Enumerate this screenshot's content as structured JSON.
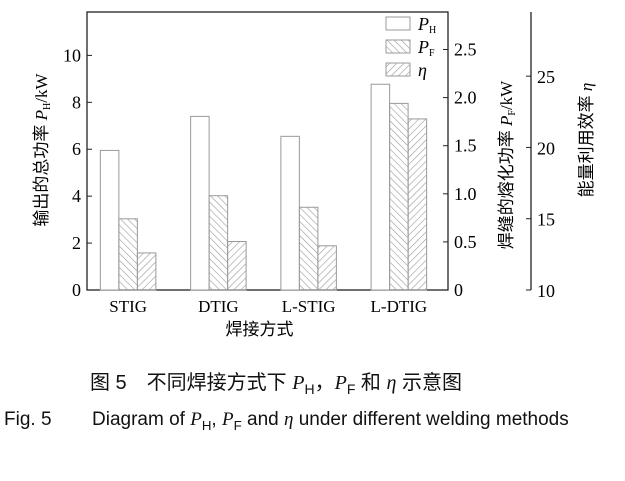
{
  "chart_data": {
    "type": "bar",
    "categories": [
      "STIG",
      "DTIG",
      "L-STIG",
      "L-DTIG"
    ],
    "xlabel": "焊接方式",
    "series": [
      {
        "name": "P_H",
        "legend_main": "P",
        "legend_sub": "H",
        "axis": "left",
        "values": [
          5.95,
          7.4,
          6.55,
          8.77
        ],
        "pattern": "none"
      },
      {
        "name": "P_F",
        "legend_main": "P",
        "legend_sub": "F",
        "axis": "right1",
        "values": [
          0.74,
          0.98,
          0.86,
          1.94
        ],
        "pattern": "hatch-right"
      },
      {
        "name": "η",
        "legend_main": "η",
        "legend_sub": "",
        "axis": "right2",
        "values": [
          12.6,
          13.4,
          13.1,
          22.0
        ],
        "pattern": "hatch-left"
      }
    ],
    "axes": {
      "left": {
        "label_prefix": "输出的总功率 ",
        "label_var": "P",
        "label_sub": "H",
        "label_unit": "/kW",
        "ylim": [
          0,
          11.85
        ],
        "ticks": [
          "0",
          "2",
          "4",
          "6",
          "8",
          "10"
        ]
      },
      "right1": {
        "label_prefix": "焊缝的熔化功率 ",
        "label_var": "P",
        "label_sub": "F",
        "label_unit": "/kW",
        "ylim": [
          0,
          2.89
        ],
        "ticks": [
          "0",
          "0.5",
          "1.0",
          "1.5",
          "2.0",
          "2.5"
        ]
      },
      "right2": {
        "label_prefix": "能量利用效率 ",
        "label_var": "η",
        "ylim": [
          10,
          29.5
        ],
        "ticks": [
          "10",
          "15",
          "20",
          "25"
        ]
      }
    },
    "legend_placement": "top-right",
    "grid": false,
    "colors": {
      "bar_edge": "#9a9a9a",
      "hatch": "#9a9a9a",
      "axis": "#222222"
    }
  },
  "caption": {
    "cn_prefix": "图 5　不同焊接方式下 ",
    "cn_p": "P",
    "cn_h": "H",
    "cn_sep": "，",
    "cn_f": "F",
    "cn_and": " 和 ",
    "cn_eta": "η",
    "cn_suffix": " 示意图",
    "en_num": "Fig. 5",
    "en_a": "Diagram of ",
    "en_p": "P",
    "en_h": "H",
    "en_comma": ", ",
    "en_f": "F",
    "en_and": " and ",
    "en_eta": "η",
    "en_b": " under different welding methods"
  }
}
